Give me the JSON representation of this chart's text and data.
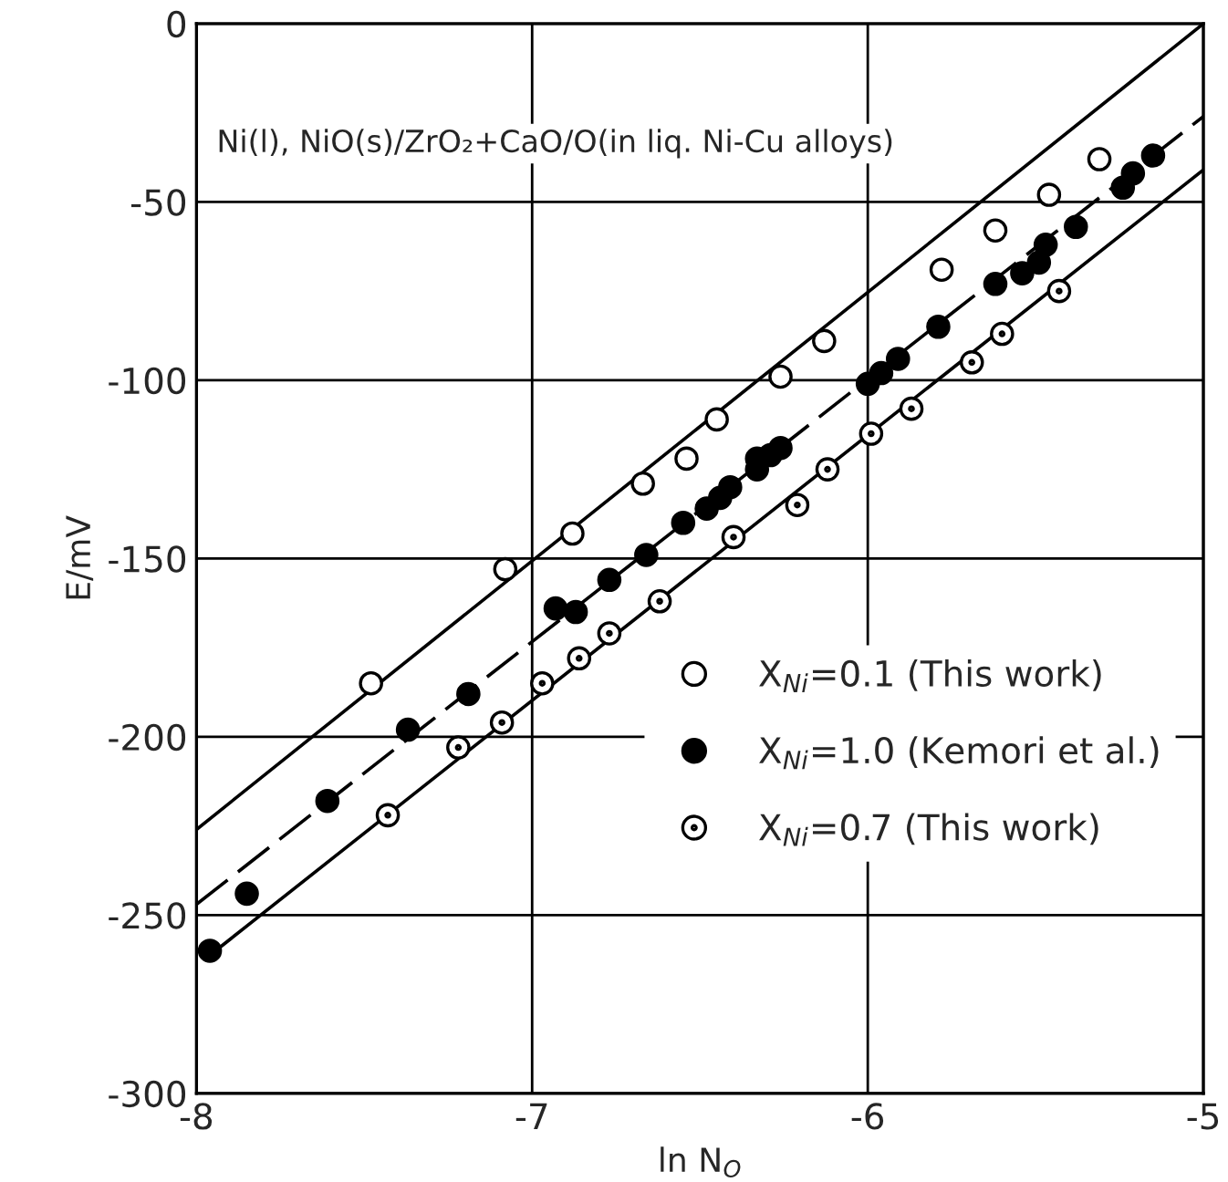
{
  "chart_data": {
    "type": "scatter",
    "xlabel": "ln N$_{O}$",
    "ylabel": "E/mV",
    "annotations": [
      "Ni(l), NiO(s)/ZrO₂+CaO/O(in liq. Ni-Cu alloys)"
    ],
    "xlim": [
      -8,
      -5
    ],
    "xticks": [
      -8,
      -7,
      -6,
      -5
    ],
    "ylim": [
      -300,
      0
    ],
    "yticks": [
      -300,
      -250,
      -200,
      -150,
      -100,
      -50,
      0
    ],
    "grid": true,
    "legend": "bottom right",
    "series": [
      {
        "name": "X$_{Ni}$=0.1 (This work)",
        "marker": "circle",
        "color": "#ffffff",
        "x": [
          -7.48,
          -7.08,
          -6.88,
          -6.67,
          -6.54,
          -6.45,
          -6.26,
          -6.13,
          -5.78,
          -5.62,
          -5.46,
          -5.31
        ],
        "values": [
          -185,
          -153,
          -143,
          -129,
          -122,
          -111,
          -99,
          -89,
          -69,
          -58,
          -48,
          -38
        ]
      },
      {
        "name": "X$_{Ni}$=1.0 (Kemori et al.)",
        "marker": "circle",
        "color": "#000000",
        "x": [
          -7.96,
          -7.85,
          -7.61,
          -7.37,
          -7.19,
          -6.93,
          -6.87,
          -6.77,
          -6.66,
          -6.55,
          -6.48,
          -6.44,
          -6.41,
          -6.33,
          -6.33,
          -6.29,
          -6.26,
          -6.0,
          -5.96,
          -5.91,
          -5.79,
          -5.62,
          -5.54,
          -5.49,
          -5.47,
          -5.38,
          -5.24,
          -5.21,
          -5.15
        ],
        "values": [
          -260,
          -244,
          -218,
          -198,
          -188,
          -164,
          -165,
          -156,
          -149,
          -140,
          -136,
          -133,
          -130,
          -122,
          -125,
          -121,
          -119,
          -101,
          -98,
          -94,
          -85,
          -73,
          -70,
          -67,
          -62,
          -57,
          -46,
          -42,
          -37
        ]
      },
      {
        "name": "X$_{Ni}$=0.7 (This work)",
        "marker": "circle_dot",
        "color": "#ffffff",
        "x": [
          -7.43,
          -7.22,
          -7.09,
          -6.97,
          -6.86,
          -6.77,
          -6.62,
          -6.4,
          -6.21,
          -6.12,
          -5.99,
          -5.87,
          -5.69,
          -5.6,
          -5.43
        ],
        "values": [
          -222,
          -203,
          -196,
          -185,
          -178,
          -171,
          -162,
          -144,
          -135,
          -125,
          -115,
          -108,
          -95,
          -87,
          -75
        ]
      },
      {
        "type": "line",
        "line_style": "solid",
        "color": "#000000",
        "x": [
          -8,
          -5
        ],
        "values": [
          -226,
          0
        ]
      },
      {
        "type": "line",
        "line_style": "dashed",
        "color": "#000000",
        "x": [
          -8,
          -5
        ],
        "values": [
          -247,
          -26
        ]
      },
      {
        "type": "line",
        "line_style": "solid",
        "color": "#000000",
        "x": [
          -7.97,
          -5
        ],
        "values": [
          -262,
          -41
        ]
      }
    ]
  }
}
